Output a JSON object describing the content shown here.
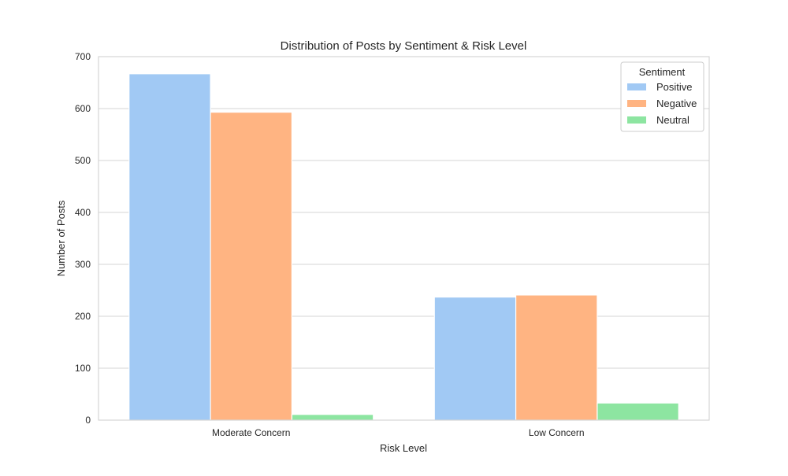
{
  "chart_data": {
    "type": "bar",
    "title": "Distribution of Posts by Sentiment & Risk Level",
    "xlabel": "Risk Level",
    "ylabel": "Number of Posts",
    "categories": [
      "Moderate Concern",
      "Low Concern"
    ],
    "series": [
      {
        "name": "Positive",
        "color": "#a1c9f4",
        "values": [
          667,
          237
        ]
      },
      {
        "name": "Negative",
        "color": "#ffb482",
        "values": [
          593,
          241
        ]
      },
      {
        "name": "Neutral",
        "color": "#8de5a1",
        "values": [
          11,
          33
        ]
      }
    ],
    "ylim": [
      0,
      700
    ],
    "yticks": [
      0,
      100,
      200,
      300,
      400,
      500,
      600,
      700
    ],
    "grid": true,
    "legend": {
      "title": "Sentiment",
      "placement": "top-right"
    }
  }
}
